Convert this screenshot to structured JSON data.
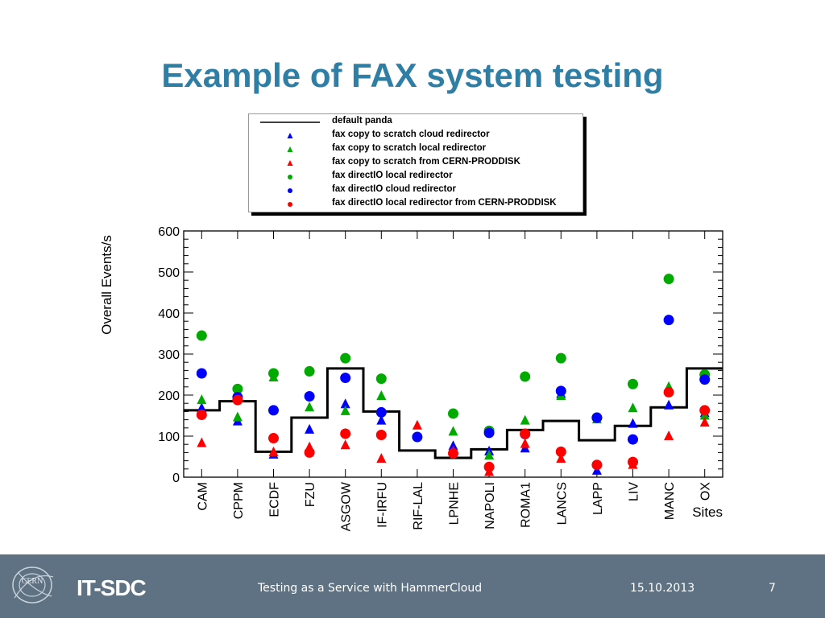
{
  "slide": {
    "title": "Example of FAX system testing"
  },
  "footer": {
    "logo_text": "CERN",
    "brand": "IT-SDC",
    "text": "Testing as a Service with HammerCloud",
    "date": "15.10.2013",
    "page": "7",
    "background": "#5f7283"
  },
  "chart_data": {
    "type": "scatter",
    "title": "",
    "xlabel": "Sites",
    "ylabel": "Overall Events/s",
    "ylim": [
      0,
      600
    ],
    "yticks": [
      "0",
      "100",
      "200",
      "300",
      "400",
      "500",
      "600"
    ],
    "grid": false,
    "legend_position": "top",
    "categories": [
      "CAM",
      "CPPM",
      "ECDF",
      "FZU",
      "ASGOW",
      "IF-IRFU",
      "RIF-LAL",
      "LPNHE",
      "NAPOLI",
      "ROMA1",
      "LANCS",
      "LAPP",
      "LIV",
      "MANC",
      "OX"
    ],
    "series": [
      {
        "name": "default panda",
        "marker": "line",
        "color": "#000000",
        "values": [
          163,
          185,
          62,
          145,
          265,
          160,
          65,
          47,
          68,
          115,
          137,
          90,
          125,
          170,
          265
        ]
      },
      {
        "name": "fax copy to scratch cloud redirector",
        "marker": "triangle",
        "color": "#0000ff",
        "values": [
          170,
          138,
          57,
          118,
          180,
          140,
          null,
          78,
          65,
          72,
          205,
          18,
          132,
          177,
          158
        ]
      },
      {
        "name": "fax copy to scratch local redirector",
        "marker": "triangle",
        "color": "#00aa00",
        "values": [
          190,
          148,
          245,
          172,
          163,
          200,
          null,
          113,
          55,
          140,
          200,
          143,
          170,
          222,
          152
        ]
      },
      {
        "name": "fax copy to scratch from CERN-PRODDISK",
        "marker": "triangle",
        "color": "#ff0000",
        "values": [
          85,
          null,
          63,
          75,
          80,
          47,
          128,
          65,
          15,
          83,
          47,
          null,
          32,
          102,
          135
        ]
      },
      {
        "name": "fax directIO local redirector",
        "marker": "circle",
        "color": "#00aa00",
        "values": [
          345,
          215,
          253,
          258,
          290,
          240,
          null,
          155,
          113,
          245,
          290,
          145,
          227,
          483,
          250
        ]
      },
      {
        "name": "fax directIO cloud redirector",
        "marker": "circle",
        "color": "#0000ff",
        "values": [
          253,
          195,
          163,
          197,
          242,
          158,
          98,
          null,
          108,
          105,
          210,
          145,
          92,
          383,
          238
        ]
      },
      {
        "name": "fax directIO local redirector from CERN-PRODDISK",
        "marker": "circle",
        "color": "#ff0000",
        "values": [
          152,
          188,
          95,
          60,
          106,
          103,
          null,
          58,
          25,
          106,
          62,
          30,
          37,
          207,
          163
        ]
      }
    ]
  }
}
